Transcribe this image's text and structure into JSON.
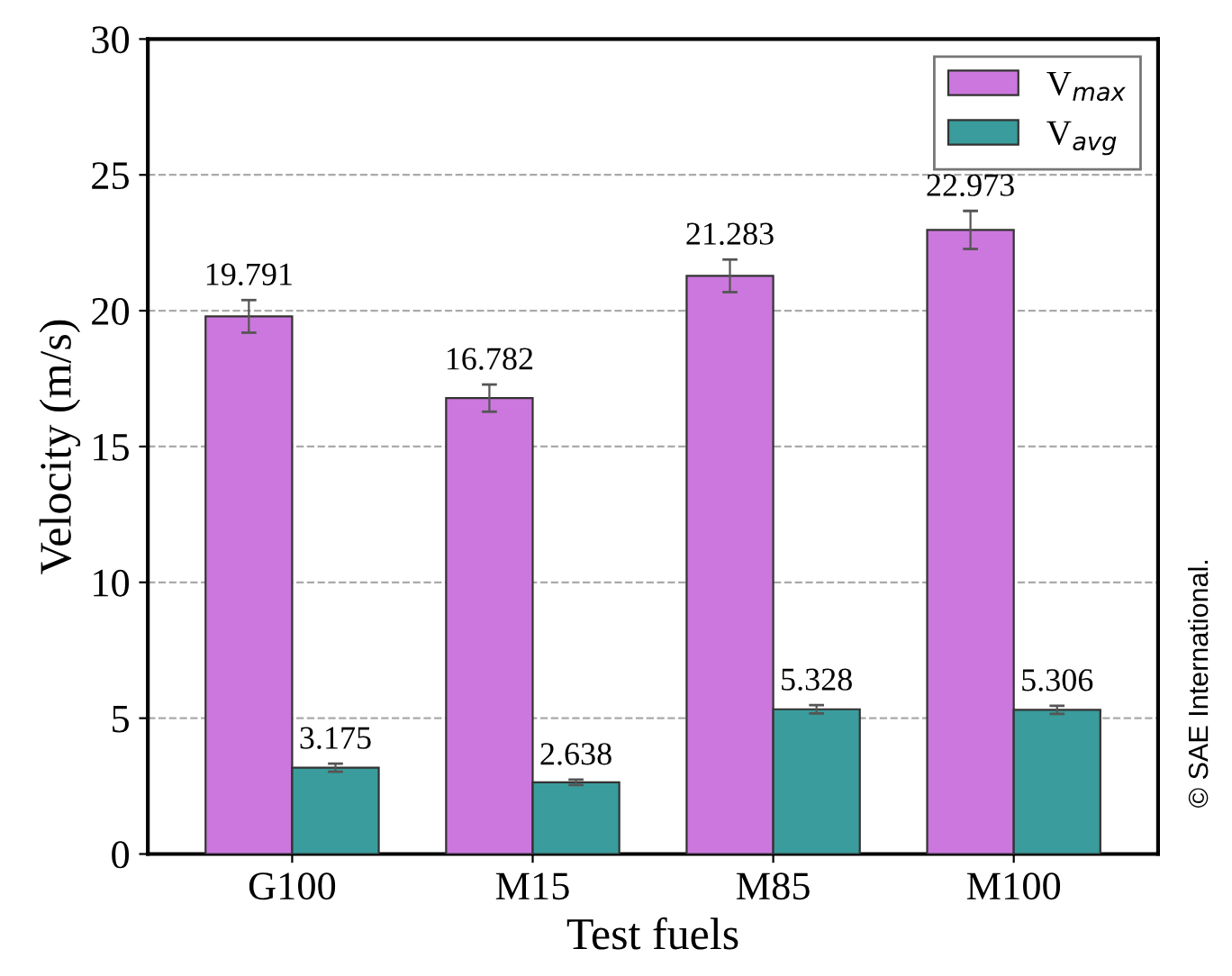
{
  "chart_data": {
    "type": "bar",
    "xlabel": "Test fuels",
    "ylabel": "Velocity (m/s)",
    "categories": [
      "G100",
      "M15",
      "M85",
      "M100"
    ],
    "series": [
      {
        "name": "V$_{max}$",
        "color": "#cc77dd",
        "values": [
          19.791,
          16.782,
          21.283,
          22.973
        ],
        "errors": [
          0.6,
          0.5,
          0.6,
          0.7
        ]
      },
      {
        "name": "V$_{avg}$",
        "color": "#3a9c9c",
        "values": [
          3.175,
          2.638,
          5.328,
          5.306
        ],
        "errors": [
          0.15,
          0.1,
          0.15,
          0.15
        ]
      }
    ],
    "ylim": [
      0,
      30
    ],
    "yticks": [
      0,
      5,
      10,
      15,
      20,
      25,
      30
    ],
    "grid": "y",
    "legend": "top right",
    "data_labels": true,
    "annotations": [
      "© SAE International."
    ]
  }
}
